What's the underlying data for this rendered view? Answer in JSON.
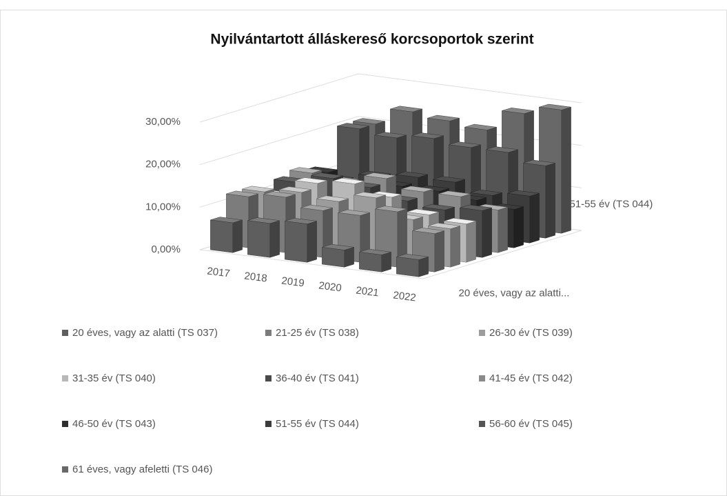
{
  "chart_data": {
    "type": "bar3d",
    "title": "Nyilvántartott álláskereső korcsoportok szerint",
    "categories": [
      "2017",
      "2018",
      "2019",
      "2020",
      "2021",
      "2022"
    ],
    "series": [
      {
        "name": "20 éves, vagy az alatti (TS 037)",
        "color": "#5e5e5e",
        "values": [
          7,
          8,
          9,
          4,
          4,
          4
        ]
      },
      {
        "name": "21-25 év (TS 038)",
        "color": "#7c7c7c",
        "values": [
          12,
          13,
          11,
          11,
          13,
          9
        ]
      },
      {
        "name": "26-30 év (TS 039)",
        "color": "#9c9c9c",
        "values": [
          12,
          13,
          12,
          14,
          10,
          9
        ]
      },
      {
        "name": "31-35 év (TS 040)",
        "color": "#b8b8b8",
        "values": [
          10,
          14,
          15,
          13,
          10,
          9
        ]
      },
      {
        "name": "36-40 év (TS 041)",
        "color": "#4a4a4a",
        "values": [
          12,
          14,
          13,
          11,
          10,
          11
        ]
      },
      {
        "name": "41-45 év (TS 042)",
        "color": "#8a8a8a",
        "values": [
          13,
          12,
          14,
          12,
          12,
          10
        ]
      },
      {
        "name": "46-50 év (TS 043)",
        "color": "#2e2e2e",
        "values": [
          12,
          10,
          11,
          11,
          10,
          9
        ]
      },
      {
        "name": "51-55 év (TS 044)",
        "color": "#3c3c3c",
        "values": [
          9,
          11,
          12,
          12,
          10,
          11
        ]
      },
      {
        "name": "56-60 év (TS 045)",
        "color": "#545454",
        "values": [
          20,
          19,
          20,
          19,
          19,
          17
        ]
      },
      {
        "name": "61 éves, vagy afeletti (TS 046)",
        "color": "#686868",
        "values": [
          20,
          24,
          23,
          22,
          27,
          29
        ]
      }
    ],
    "depth_labels": [
      "20 éves, vagy az alatti...",
      "51-55 év (TS 044)"
    ],
    "ylim": [
      0,
      30
    ],
    "yticks": [
      {
        "value": 0,
        "label": "0,00%"
      },
      {
        "value": 10,
        "label": "10,00%"
      },
      {
        "value": 20,
        "label": "20,00%"
      },
      {
        "value": 30,
        "label": "30,00%"
      }
    ],
    "grid": true
  }
}
